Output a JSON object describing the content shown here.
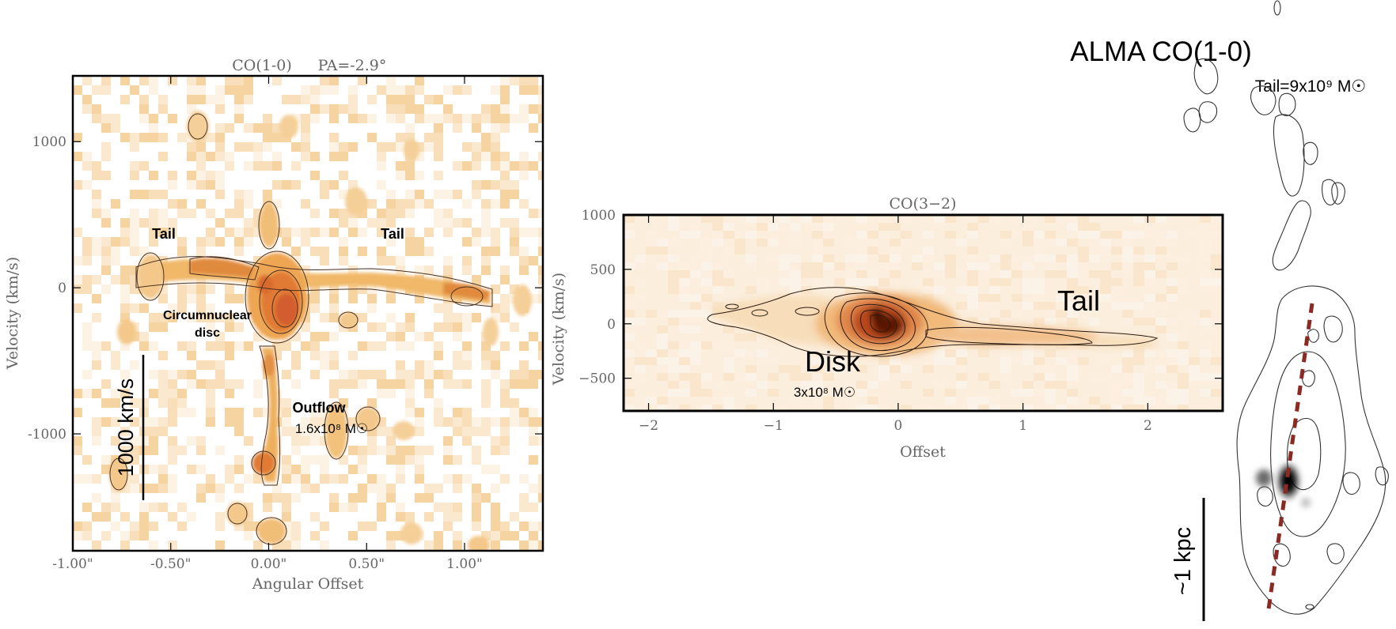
{
  "panel_a": {
    "title_line": "CO(1-0)",
    "pa": "PA=-2.9°",
    "xlabel": "Angular Offset",
    "ylabel": "Velocity (km/s)",
    "x_ticks": [
      "-1.00\"",
      "-0.50\"",
      "0.00\"",
      "0.50\"",
      "1.00\""
    ],
    "y_ticks": [
      "1000",
      "0",
      "-1000"
    ],
    "labels": {
      "tail_left": "Tail",
      "tail_right": "Tail",
      "cnd_line1": "Circumnuclear",
      "cnd_line2": "disc",
      "outflow": "Outflow",
      "outflow_mass": "1.6x10⁸ M☉",
      "scalebar": "1000 km/s"
    }
  },
  "panel_b": {
    "title": "CO(3−2)",
    "xlabel": "Offset",
    "ylabel": "Velocity (km/s)",
    "x_ticks": [
      "−2",
      "−1",
      "0",
      "1",
      "2"
    ],
    "y_ticks": [
      "1000",
      "500",
      "0",
      "−500"
    ],
    "labels": {
      "tail": "Tail",
      "disk": "Disk",
      "disk_mass": "3x10⁸ M☉"
    }
  },
  "panel_c": {
    "title": "ALMA CO(1-0)",
    "tail_mass": "Tail=9x10⁹ M☉",
    "scalebar": "~1 kpc",
    "slit_color": "#8b2a22"
  },
  "colors": {
    "emission_light": "#f6d9a8",
    "emission_mid": "#eaa54e",
    "emission_strong": "#d96b2e",
    "emission_peak": "#4a0d00"
  },
  "chart_data": [
    {
      "type": "heatmap",
      "title": "CO(1-0)",
      "subtitle": "PA=-2.9°",
      "xlabel": "Angular Offset",
      "ylabel": "Velocity (km/s)",
      "xlim": [
        -1.0,
        1.4
      ],
      "ylim": [
        -1800,
        1450
      ],
      "x_tick_values": [
        -1.0,
        -0.5,
        0.0,
        0.5,
        1.0
      ],
      "y_tick_values": [
        1000,
        0,
        -1000
      ],
      "features": [
        {
          "name": "Circumnuclear disc",
          "x": 0.05,
          "y": -100
        },
        {
          "name": "Tail",
          "x": -0.5,
          "y": 150
        },
        {
          "name": "Tail",
          "x": 0.6,
          "y": 50
        },
        {
          "name": "Outflow",
          "x": 0.0,
          "y": -900
        }
      ],
      "grid": false
    },
    {
      "type": "heatmap",
      "title": "CO(3−2)",
      "xlabel": "Offset",
      "ylabel": "Velocity (km/s)",
      "xlim": [
        -2.2,
        2.6
      ],
      "ylim": [
        -800,
        1000
      ],
      "x_tick_values": [
        -2,
        -1,
        0,
        1,
        2
      ],
      "y_tick_values": [
        1000,
        500,
        0,
        -500
      ],
      "features": [
        {
          "name": "Disk",
          "x": 0.0,
          "y": -50
        },
        {
          "name": "Tail",
          "x": 1.5,
          "y": -100
        }
      ],
      "grid": false
    }
  ]
}
